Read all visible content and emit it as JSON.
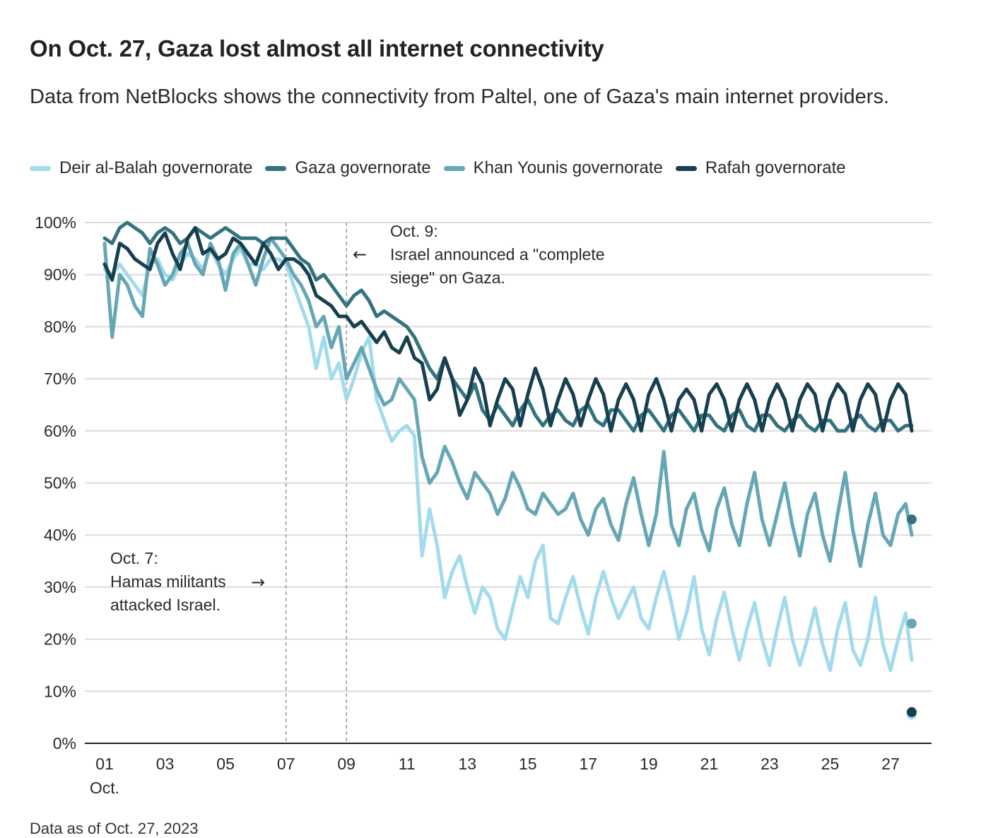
{
  "title": "On Oct. 27, Gaza lost almost all internet connectivity",
  "subtitle": "Data from NetBlocks shows the connectivity from Paltel, one of Gaza's main internet providers.",
  "footnote": "Data as of Oct. 27, 2023",
  "annotations": {
    "oct7": {
      "line1": "Oct. 7:",
      "line2": "Hamas militants",
      "line3": "attacked Israel.",
      "arrow": "→"
    },
    "oct9": {
      "line1": "Oct. 9:",
      "line2": "Israel announced a \"complete",
      "line3": "siege\" on Gaza.",
      "arrow": "←"
    }
  },
  "colors": {
    "deir": "#a2dbec",
    "gaza": "#33737f",
    "khan": "#66a6b5",
    "rafah": "#173f4f",
    "grid": "#dcdcdc",
    "axis": "#222222",
    "event_line": "#999999"
  },
  "chart_data": {
    "type": "line",
    "title": "On Oct. 27, Gaza lost almost all internet connectivity",
    "xlabel": "",
    "ylabel": "",
    "x_unit": "day of October 2023 (fractional)",
    "xlim": [
      1,
      28.7
    ],
    "ylim": [
      0,
      100
    ],
    "y_ticks": [
      0,
      10,
      20,
      30,
      40,
      50,
      60,
      70,
      80,
      90,
      100
    ],
    "y_tick_labels": [
      "0%",
      "10%",
      "20%",
      "30%",
      "40%",
      "50%",
      "60%",
      "70%",
      "80%",
      "90%",
      "100%"
    ],
    "x_ticks": [
      1,
      3,
      5,
      7,
      9,
      11,
      13,
      15,
      17,
      19,
      21,
      23,
      25,
      27
    ],
    "x_tick_labels": [
      "01",
      "03",
      "05",
      "07",
      "09",
      "11",
      "13",
      "15",
      "17",
      "19",
      "21",
      "23",
      "25",
      "27"
    ],
    "x_tick_sublabel": "Oct.",
    "grid": true,
    "legend_position": "top-left",
    "event_lines": [
      7,
      9
    ],
    "x": [
      1,
      1.25,
      1.5,
      1.75,
      2,
      2.25,
      2.5,
      2.75,
      3,
      3.25,
      3.5,
      3.75,
      4,
      4.25,
      4.5,
      4.75,
      5,
      5.25,
      5.5,
      5.75,
      6,
      6.25,
      6.5,
      6.75,
      7,
      7.25,
      7.5,
      7.75,
      8,
      8.25,
      8.5,
      8.75,
      9,
      9.25,
      9.5,
      9.75,
      10,
      10.25,
      10.5,
      10.75,
      11,
      11.25,
      11.5,
      11.75,
      12,
      12.25,
      12.5,
      12.75,
      13,
      13.25,
      13.5,
      13.75,
      14,
      14.25,
      14.5,
      14.75,
      15,
      15.25,
      15.5,
      15.75,
      16,
      16.25,
      16.5,
      16.75,
      17,
      17.25,
      17.5,
      17.75,
      18,
      18.25,
      18.5,
      18.75,
      19,
      19.25,
      19.5,
      19.75,
      20,
      20.25,
      20.5,
      20.75,
      21,
      21.25,
      21.5,
      21.75,
      22,
      22.25,
      22.5,
      22.75,
      23,
      23.25,
      23.5,
      23.75,
      24,
      24.25,
      24.5,
      24.75,
      25,
      25.25,
      25.5,
      25.75,
      26,
      26.25,
      26.5,
      26.75,
      27,
      27.25,
      27.5,
      27.7
    ],
    "series": [
      {
        "name": "Deir al-Balah governorate",
        "key": "deir",
        "values": [
          91,
          90,
          92,
          90,
          88,
          86,
          92,
          93,
          90,
          89,
          92,
          94,
          93,
          91,
          95,
          92,
          90,
          93,
          95,
          92,
          92,
          91,
          93,
          93,
          92,
          88,
          84,
          80,
          72,
          78,
          70,
          73,
          66,
          70,
          75,
          78,
          66,
          62,
          58,
          60,
          61,
          59,
          36,
          45,
          38,
          28,
          33,
          36,
          30,
          25,
          30,
          28,
          22,
          20,
          26,
          32,
          28,
          35,
          38,
          24,
          23,
          28,
          32,
          26,
          21,
          28,
          33,
          28,
          24,
          27,
          30,
          24,
          22,
          28,
          33,
          27,
          20,
          25,
          32,
          22,
          17,
          24,
          29,
          22,
          16,
          22,
          27,
          20,
          15,
          22,
          28,
          20,
          15,
          20,
          26,
          19,
          14,
          22,
          27,
          18,
          15,
          20,
          28,
          19,
          14,
          20,
          25,
          16,
          14,
          6
        ]
      },
      {
        "name": "Gaza governorate",
        "key": "gaza",
        "values": [
          97,
          96,
          99,
          100,
          99,
          98,
          96,
          98,
          99,
          98,
          96,
          97,
          99,
          98,
          97,
          98,
          99,
          98,
          97,
          97,
          97,
          96,
          97,
          97,
          97,
          95,
          93,
          92,
          89,
          90,
          88,
          86,
          84,
          86,
          87,
          85,
          82,
          83,
          82,
          81,
          80,
          78,
          75,
          72,
          70,
          74,
          70,
          68,
          66,
          69,
          64,
          62,
          65,
          63,
          61,
          64,
          66,
          63,
          61,
          63,
          64,
          62,
          61,
          64,
          65,
          62,
          61,
          64,
          64,
          62,
          60,
          63,
          64,
          62,
          60,
          63,
          64,
          62,
          60,
          63,
          63,
          61,
          60,
          63,
          64,
          61,
          60,
          63,
          63,
          61,
          60,
          62,
          63,
          61,
          60,
          62,
          62,
          60,
          60,
          62,
          63,
          61,
          60,
          62,
          62,
          60,
          61,
          61,
          60,
          43
        ]
      },
      {
        "name": "Khan Younis governorate",
        "key": "khan",
        "values": [
          96,
          78,
          90,
          88,
          84,
          82,
          95,
          92,
          88,
          90,
          94,
          96,
          92,
          90,
          96,
          93,
          87,
          94,
          96,
          92,
          88,
          93,
          97,
          95,
          93,
          90,
          88,
          85,
          80,
          82,
          76,
          80,
          70,
          73,
          76,
          72,
          68,
          65,
          66,
          70,
          68,
          66,
          55,
          50,
          52,
          57,
          54,
          50,
          47,
          52,
          50,
          48,
          44,
          47,
          52,
          49,
          45,
          44,
          48,
          46,
          44,
          45,
          48,
          43,
          40,
          45,
          47,
          42,
          39,
          46,
          51,
          44,
          38,
          44,
          56,
          42,
          38,
          45,
          48,
          41,
          37,
          45,
          49,
          42,
          38,
          46,
          52,
          43,
          38,
          44,
          50,
          42,
          36,
          44,
          48,
          40,
          35,
          44,
          52,
          41,
          34,
          42,
          48,
          40,
          38,
          44,
          46,
          40,
          40,
          23
        ]
      },
      {
        "name": "Rafah governorate",
        "key": "rafah",
        "values": [
          92,
          89,
          96,
          95,
          93,
          92,
          91,
          96,
          98,
          94,
          91,
          97,
          99,
          94,
          95,
          93,
          94,
          97,
          96,
          94,
          92,
          96,
          94,
          91,
          93,
          93,
          92,
          90,
          86,
          85,
          84,
          82,
          82,
          80,
          81,
          79,
          77,
          79,
          76,
          75,
          78,
          74,
          73,
          66,
          68,
          74,
          70,
          63,
          66,
          72,
          69,
          61,
          66,
          70,
          68,
          61,
          67,
          72,
          68,
          61,
          66,
          70,
          67,
          61,
          66,
          70,
          67,
          60,
          66,
          69,
          66,
          60,
          67,
          70,
          66,
          60,
          66,
          68,
          66,
          60,
          67,
          69,
          66,
          60,
          66,
          69,
          66,
          60,
          66,
          69,
          66,
          60,
          66,
          69,
          67,
          60,
          66,
          69,
          67,
          60,
          66,
          69,
          67,
          60,
          66,
          69,
          67,
          60,
          67,
          6
        ]
      }
    ],
    "end_markers": [
      {
        "series": "Gaza governorate",
        "x": 27.7,
        "value": 43
      },
      {
        "series": "Khan Younis governorate",
        "x": 27.7,
        "value": 23
      },
      {
        "series": "Rafah governorate",
        "x": 27.7,
        "value": 6
      },
      {
        "series": "Deir al-Balah governorate",
        "x": 27.7,
        "value": 5.5
      }
    ]
  }
}
